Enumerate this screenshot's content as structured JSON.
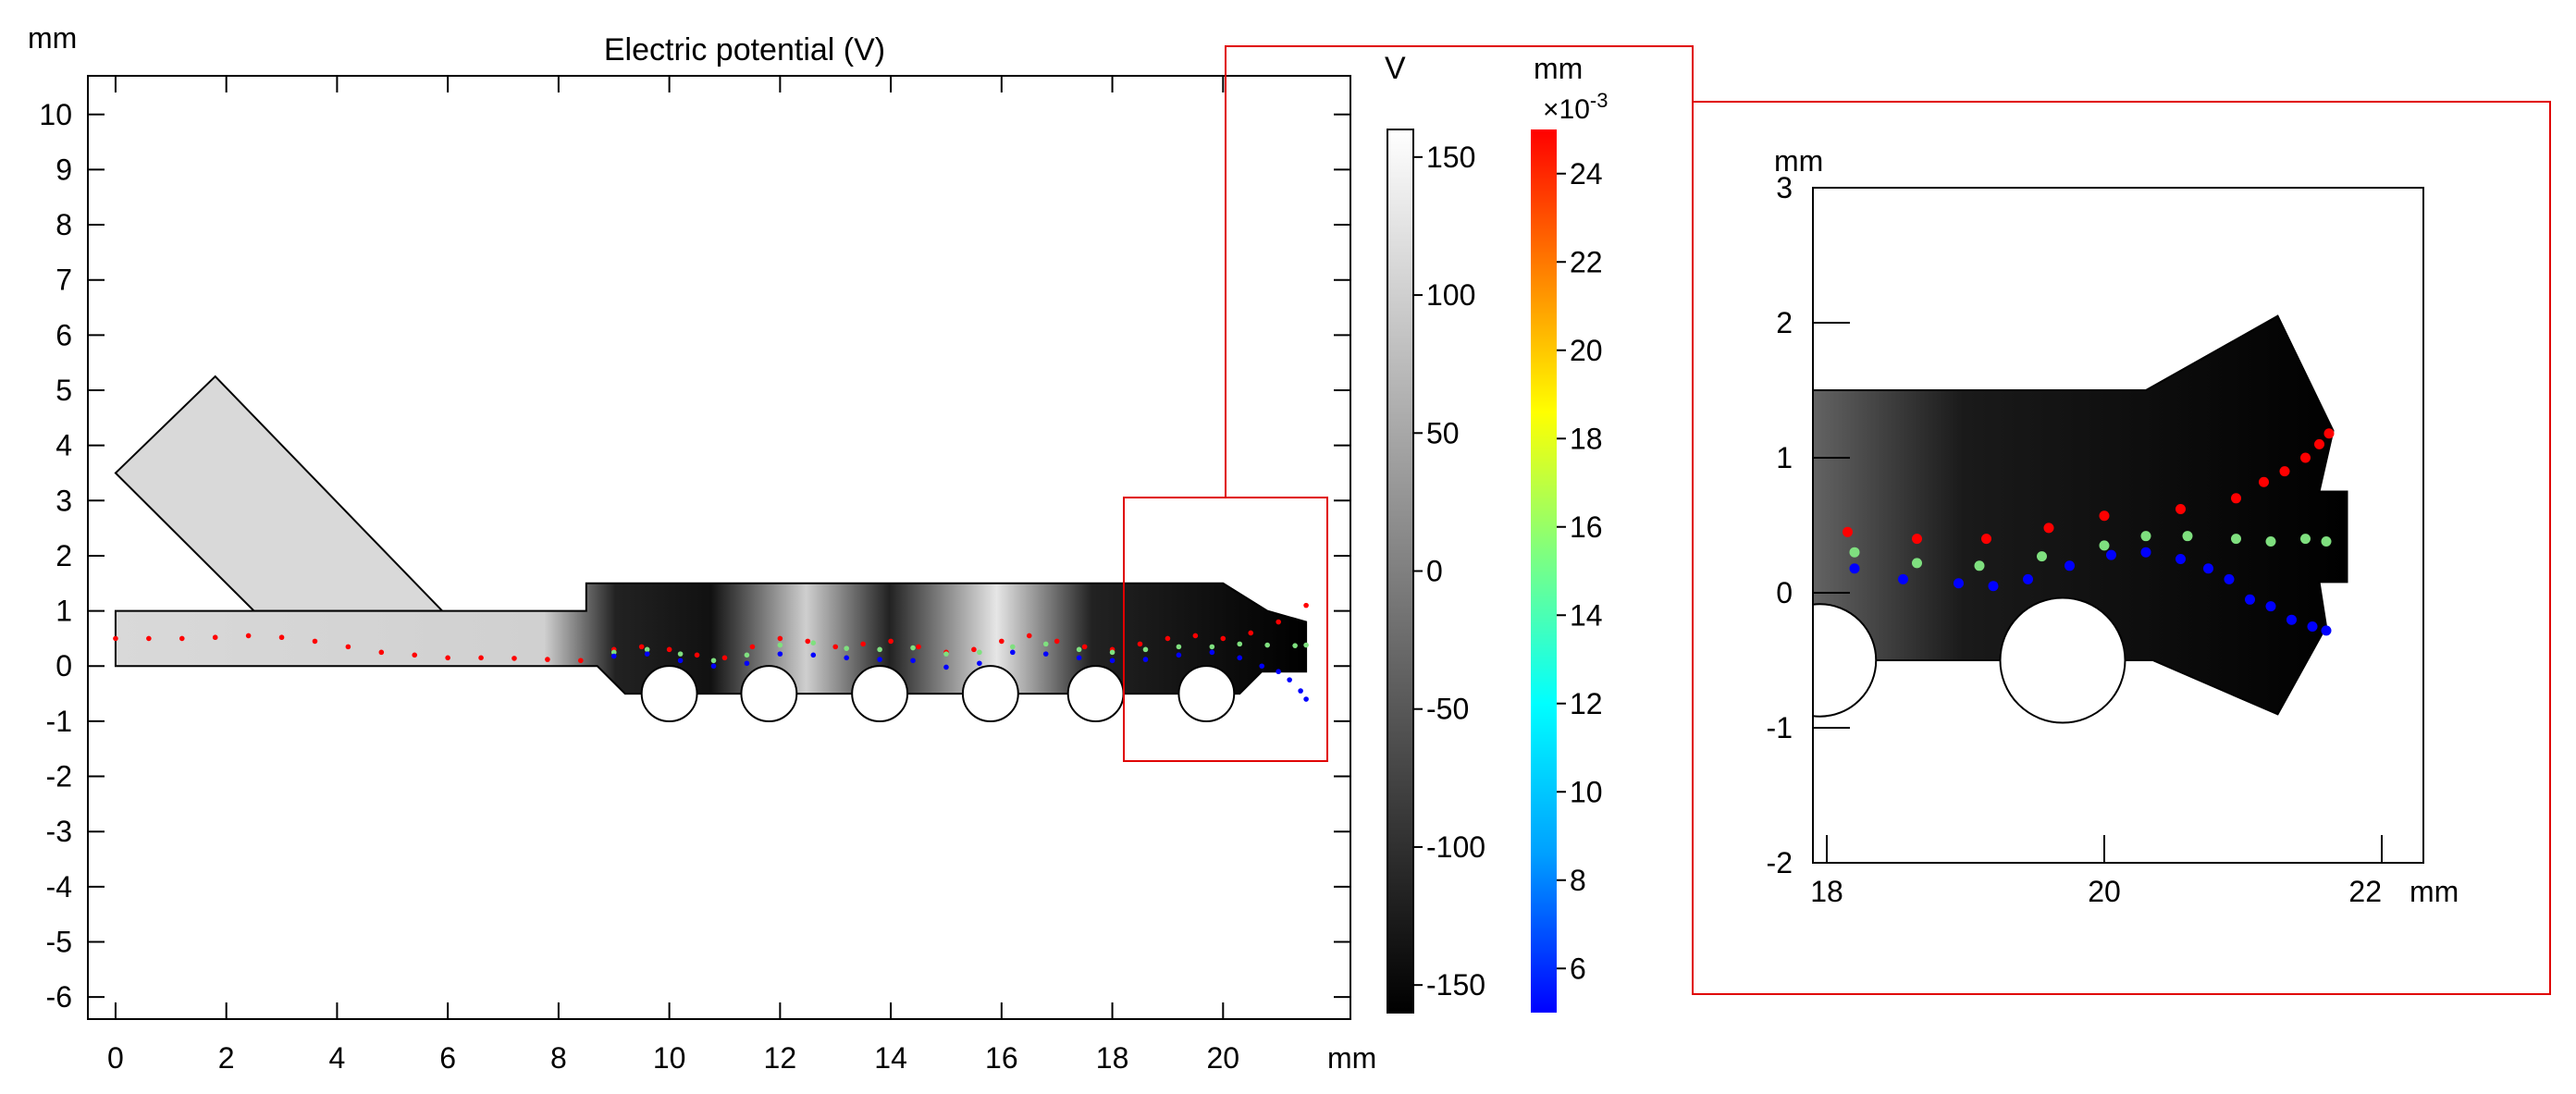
{
  "chart_data": [
    {
      "type": "scatter",
      "title": "Electric potential (V)",
      "xlabel": "mm",
      "ylabel": "mm",
      "xlim": [
        -0.5,
        22.3
      ],
      "ylim": [
        -6.4,
        10.7
      ],
      "xticks": [
        "0",
        "2",
        "4",
        "6",
        "8",
        "10",
        "12",
        "14",
        "16",
        "18",
        "20"
      ],
      "yticks": [
        "10",
        "9",
        "8",
        "7",
        "6",
        "5",
        "4",
        "3",
        "2",
        "1",
        "0",
        "-1",
        "-2",
        "-3",
        "-4",
        "-5",
        "-6"
      ],
      "grid": false,
      "geometry": {
        "channel_outline": [
          [
            0,
            0
          ],
          [
            8.7,
            0
          ],
          [
            9.2,
            -0.5
          ],
          [
            9.6,
            -0.5
          ],
          [
            20,
            -0.5
          ],
          [
            20.3,
            -0.5
          ],
          [
            20.7,
            -0.1
          ],
          [
            21.5,
            -0.1
          ],
          [
            21.5,
            0.8
          ],
          [
            20.8,
            1.0
          ],
          [
            20,
            1.5
          ],
          [
            8.5,
            1.5
          ],
          [
            8.5,
            1.0
          ],
          [
            6,
            1.0
          ],
          [
            2.5,
            1.0
          ],
          [
            0,
            1.0
          ]
        ],
        "side_inlet": [
          [
            0,
            3.5
          ],
          [
            1.8,
            5.25
          ],
          [
            5.9,
            1.0
          ],
          [
            2.5,
            1.0
          ]
        ],
        "hole_centers_x": [
          10.0,
          11.8,
          13.8,
          15.8,
          17.7,
          19.7
        ],
        "hole_radius": 0.5
      },
      "series": [
        {
          "color": "#ff0000",
          "x": [
            0.0,
            0.6,
            1.2,
            1.8,
            2.4,
            3.0,
            3.6,
            4.2,
            4.8,
            5.4,
            6.0,
            6.6,
            7.2,
            7.8,
            8.4,
            9.0,
            9.5,
            10.0,
            10.5,
            11.0,
            11.5,
            12.0,
            12.5,
            13.0,
            13.5,
            14.0,
            14.5,
            15.0,
            15.5,
            16.0,
            16.5,
            17.0,
            17.5,
            18.0,
            18.5,
            19.0,
            19.5,
            20.0,
            20.5,
            21.0,
            21.5
          ],
          "y": [
            0.5,
            0.5,
            0.5,
            0.52,
            0.55,
            0.52,
            0.45,
            0.35,
            0.25,
            0.2,
            0.15,
            0.15,
            0.14,
            0.12,
            0.1,
            0.3,
            0.35,
            0.3,
            0.2,
            0.15,
            0.35,
            0.5,
            0.45,
            0.35,
            0.4,
            0.45,
            0.35,
            0.25,
            0.3,
            0.45,
            0.55,
            0.45,
            0.35,
            0.3,
            0.4,
            0.5,
            0.55,
            0.5,
            0.6,
            0.8,
            1.1
          ]
        },
        {
          "color": "#7fe07f",
          "x": [
            9.0,
            9.6,
            10.2,
            10.8,
            11.4,
            12.0,
            12.6,
            13.2,
            13.8,
            14.4,
            15.0,
            15.6,
            16.2,
            16.8,
            17.4,
            18.0,
            18.6,
            19.2,
            19.8,
            20.3,
            20.8,
            21.3,
            21.5
          ],
          "y": [
            0.25,
            0.3,
            0.22,
            0.1,
            0.2,
            0.38,
            0.42,
            0.32,
            0.3,
            0.33,
            0.22,
            0.25,
            0.35,
            0.4,
            0.3,
            0.25,
            0.3,
            0.35,
            0.35,
            0.4,
            0.38,
            0.37,
            0.38
          ]
        },
        {
          "color": "#0000ff",
          "x": [
            9.0,
            9.6,
            10.2,
            10.8,
            11.4,
            12.0,
            12.6,
            13.2,
            13.8,
            14.4,
            15.0,
            15.6,
            16.2,
            16.8,
            17.4,
            18.0,
            18.6,
            19.2,
            19.8,
            20.3,
            20.7,
            21.0,
            21.2,
            21.4,
            21.5
          ],
          "y": [
            0.18,
            0.22,
            0.1,
            0.0,
            0.05,
            0.22,
            0.2,
            0.15,
            0.12,
            0.1,
            -0.02,
            0.05,
            0.25,
            0.22,
            0.15,
            0.1,
            0.12,
            0.2,
            0.25,
            0.15,
            0.0,
            -0.1,
            -0.25,
            -0.45,
            -0.6
          ]
        }
      ]
    },
    {
      "type": "heatmap",
      "label": "V",
      "range": [
        -160,
        160
      ],
      "ticks": [
        "150",
        "100",
        "50",
        "0",
        "-50",
        "-100",
        "-150"
      ],
      "colors": [
        "#000000",
        "#ffffff"
      ]
    },
    {
      "type": "heatmap",
      "label": "mm",
      "multiplier": "×10",
      "multiplier_exp": "-3",
      "range": [
        5,
        25
      ],
      "ticks": [
        "24",
        "22",
        "20",
        "18",
        "16",
        "14",
        "12",
        "10",
        "8",
        "6"
      ],
      "colors": [
        "#0000ff",
        "#00a0ff",
        "#00ffff",
        "#7fff7f",
        "#ffff00",
        "#ff8000",
        "#ff0000"
      ]
    },
    {
      "type": "scatter",
      "xlabel": "mm",
      "ylabel": "mm",
      "xlim": [
        17.9,
        22.3
      ],
      "ylim": [
        -2.0,
        3.0
      ],
      "xticks": [
        "18",
        "20",
        "22"
      ],
      "yticks": [
        "3",
        "2",
        "1",
        "0",
        "-1",
        "-2"
      ],
      "series": [
        {
          "color": "#ff0000",
          "x": [
            18.15,
            18.65,
            19.15,
            19.6,
            20.0,
            20.55,
            20.95,
            21.15,
            21.3,
            21.45,
            21.55,
            21.62
          ],
          "y": [
            0.45,
            0.4,
            0.4,
            0.48,
            0.57,
            0.62,
            0.7,
            0.82,
            0.9,
            1.0,
            1.1,
            1.18
          ]
        },
        {
          "color": "#7fe07f",
          "x": [
            18.2,
            18.65,
            19.1,
            19.55,
            20.0,
            20.3,
            20.6,
            20.95,
            21.2,
            21.45,
            21.6
          ],
          "y": [
            0.3,
            0.22,
            0.2,
            0.27,
            0.35,
            0.42,
            0.42,
            0.4,
            0.38,
            0.4,
            0.38
          ]
        },
        {
          "color": "#0000ff",
          "x": [
            18.2,
            18.55,
            18.95,
            19.2,
            19.45,
            19.75,
            20.05,
            20.3,
            20.55,
            20.75,
            20.9,
            21.05,
            21.2,
            21.35,
            21.5,
            21.6
          ],
          "y": [
            0.18,
            0.1,
            0.07,
            0.05,
            0.1,
            0.2,
            0.28,
            0.3,
            0.25,
            0.18,
            0.1,
            -0.05,
            -0.1,
            -0.2,
            -0.25,
            -0.28
          ]
        }
      ]
    }
  ]
}
